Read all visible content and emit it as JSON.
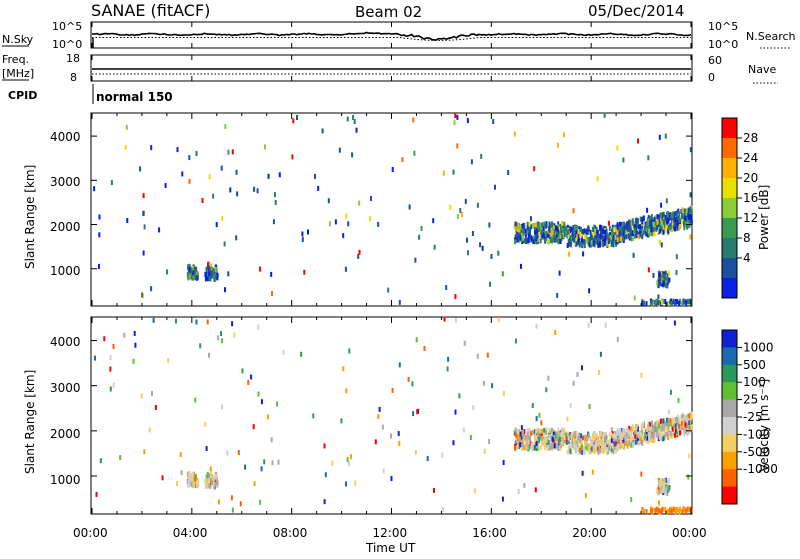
{
  "header": {
    "station": "SANAE (fitACF)",
    "beam": "Beam 02",
    "date": "05/Dec/2014"
  },
  "noise_panel": {
    "left_label": "N.Sky",
    "right_label": "N.Search",
    "left_ticks": [
      "10^5",
      "10^0"
    ],
    "right_ticks": [
      "10^5",
      "10^0"
    ]
  },
  "freq_panel": {
    "left_label_line1": "Freq.",
    "left_label_line2": "[MHz]",
    "left_ticks": [
      "18",
      "8"
    ],
    "right_ticks": [
      "60",
      "0"
    ],
    "right_label": "Nave"
  },
  "cpid_panel": {
    "label": "CPID",
    "mode": "normal 150"
  },
  "power_panel": {
    "ylabel": "Slant Range [km]",
    "yticks": [
      "4000",
      "3000",
      "2000",
      "1000"
    ],
    "colorbar_label": "Power [dB]",
    "colorbar_ticks": [
      "28",
      "24",
      "20",
      "16",
      "12",
      "8",
      "4"
    ],
    "colorbar_colors": [
      "#ff0000",
      "#ff6a00",
      "#ffb000",
      "#e8e000",
      "#8acc3a",
      "#3a9a50",
      "#2a7a70",
      "#1a50a0",
      "#0a20e0"
    ]
  },
  "velocity_panel": {
    "ylabel": "Slant Range [km]",
    "yticks": [
      "4000",
      "3000",
      "2000",
      "1000"
    ],
    "colorbar_label": "Velocity [m s⁻¹]",
    "colorbar_ticks": [
      "1000",
      "500",
      "100",
      "25",
      "-25",
      "-100",
      "-500",
      "-1000"
    ],
    "colorbar_colors": [
      "#1020d0",
      "#1a6ab0",
      "#2a9a5a",
      "#60c030",
      "#a8a8a8",
      "#d0d0d0",
      "#f0d060",
      "#ffa000",
      "#ff6000",
      "#ff0000"
    ]
  },
  "xaxis": {
    "label": "Time UT",
    "ticks": [
      "00:00",
      "04:00",
      "08:00",
      "12:00",
      "16:00",
      "20:00",
      "00:00"
    ]
  },
  "chart_data": {
    "type": "heatmap",
    "title": "SANAE (fitACF)",
    "time_range_hours": [
      0,
      24
    ],
    "range_km": [
      180,
      4500
    ],
    "features": [
      {
        "name": "dusk echo band",
        "t_start_h": 16.9,
        "t_end_h": 24.0,
        "range_km": [
          1600,
          2400
        ],
        "power_db": [
          4,
          16
        ],
        "velocity_ms": [
          -100,
          25
        ]
      },
      {
        "name": "early patch 1",
        "t_start_h": 3.8,
        "t_end_h": 4.2,
        "range_km": [
          750,
          1050
        ],
        "power_db": [
          4,
          12
        ]
      },
      {
        "name": "early patch 2",
        "t_start_h": 4.5,
        "t_end_h": 5.0,
        "range_km": [
          750,
          1050
        ],
        "power_db": [
          4,
          12
        ]
      },
      {
        "name": "near range strip",
        "t_start_h": 22.0,
        "t_end_h": 24.0,
        "range_km": [
          180,
          260
        ],
        "power_db": [
          4,
          8
        ],
        "velocity_ms": [
          -500,
          -100
        ]
      },
      {
        "name": "patch ~23h",
        "t_start_h": 22.6,
        "t_end_h": 23.1,
        "range_km": [
          600,
          900
        ],
        "power_db": [
          4,
          20
        ]
      }
    ],
    "noise_sky_trend": "flat near 10^3 with enhancement around 12:00 UT and dip 13:00-15:00 UT"
  }
}
